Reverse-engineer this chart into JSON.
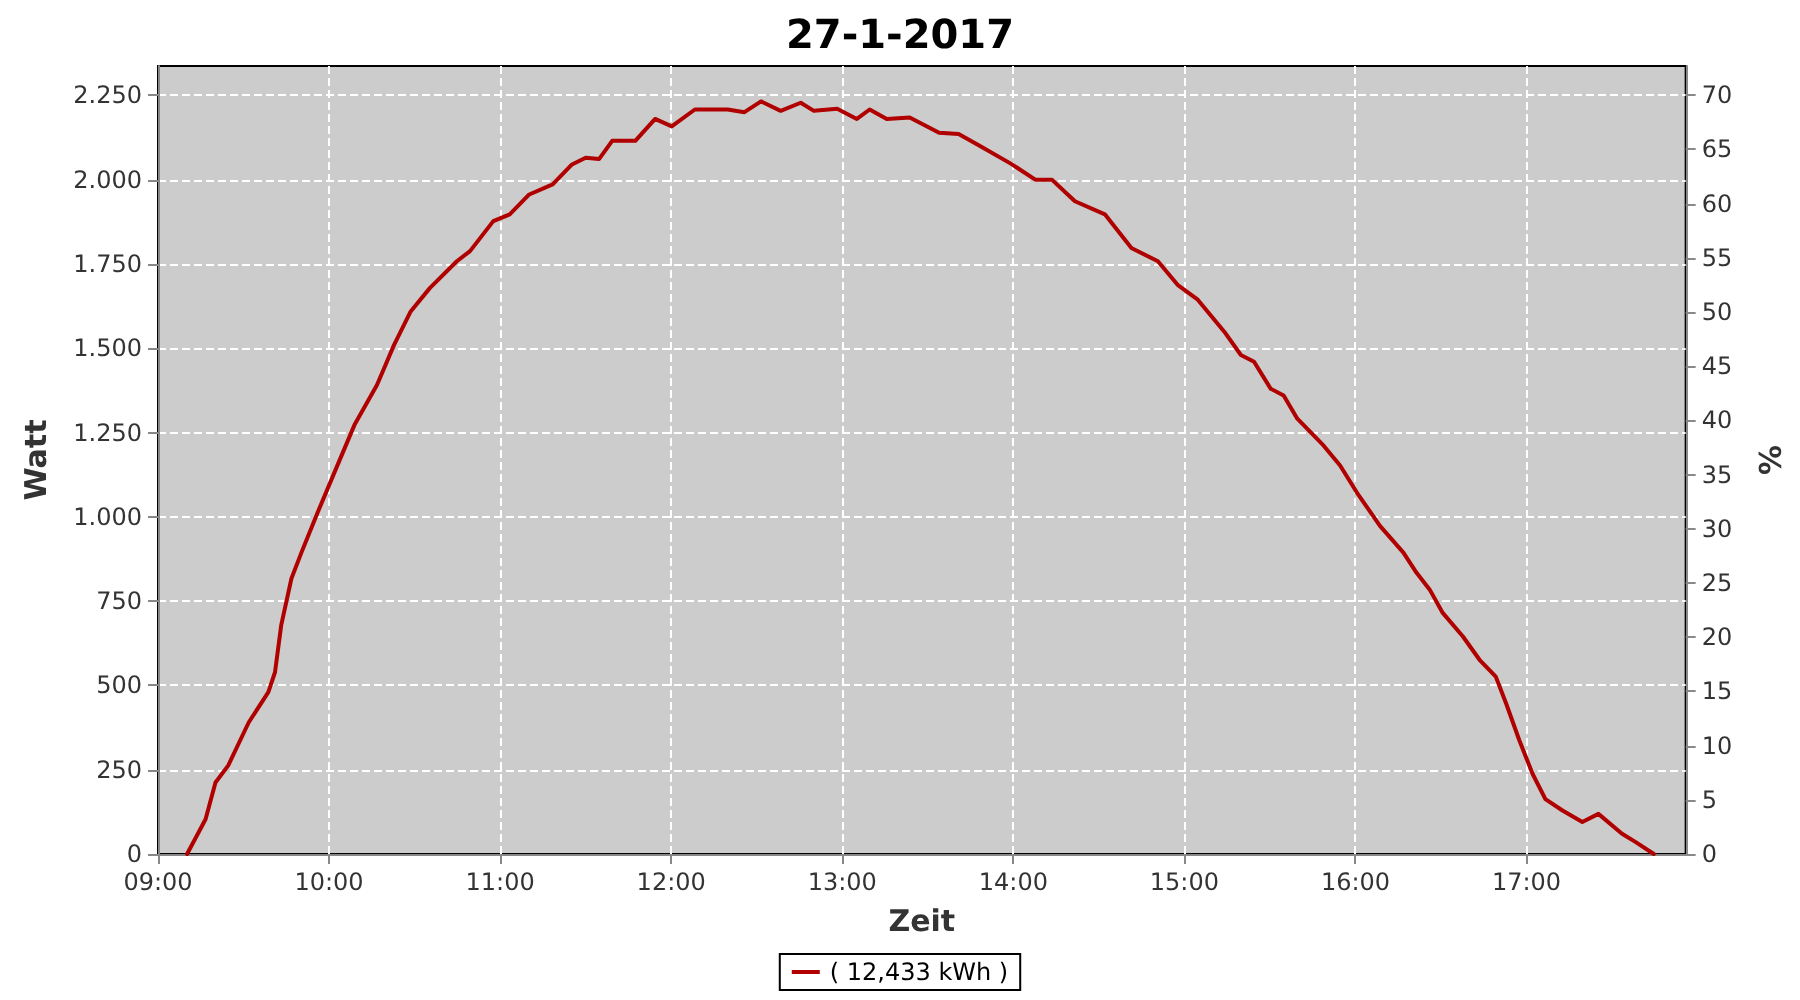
{
  "chart_data": {
    "type": "line",
    "title": "27-1-2017",
    "xlabel": "Zeit",
    "ylabel": "Watt",
    "y2label": "%",
    "xlim": [
      9,
      17.93
    ],
    "xticks": [
      {
        "value": 9,
        "label": "09:00"
      },
      {
        "value": 10,
        "label": "10:00"
      },
      {
        "value": 11,
        "label": "11:00"
      },
      {
        "value": 12,
        "label": "12:00"
      },
      {
        "value": 13,
        "label": "13:00"
      },
      {
        "value": 14,
        "label": "14:00"
      },
      {
        "value": 15,
        "label": "15:00"
      },
      {
        "value": 16,
        "label": "16:00"
      },
      {
        "value": 17,
        "label": "17:00"
      }
    ],
    "ylim": [
      0,
      2337
    ],
    "yticks": [
      0,
      250,
      500,
      750,
      {
        "value": 1000,
        "label": "1.000"
      },
      {
        "value": 1250,
        "label": "1.250"
      },
      {
        "value": 1500,
        "label": "1.500"
      },
      {
        "value": 1750,
        "label": "1.750"
      },
      {
        "value": 2000,
        "label": "2.000"
      },
      {
        "value": 2250,
        "label": "2.250"
      }
    ],
    "y2lim": [
      0,
      72.7
    ],
    "y2ticks": [
      0,
      5,
      10,
      15,
      20,
      25,
      30,
      35,
      40,
      45,
      50,
      55,
      60,
      65,
      70
    ],
    "grid": true,
    "legend": "bottom",
    "marker": "none",
    "line_style": "solid",
    "series": [
      {
        "name": "( 12,433 kWh )",
        "color": "#b00000",
        "x": [
          9.17,
          9.278,
          9.336,
          9.41,
          9.53,
          9.645,
          9.684,
          9.72,
          9.78,
          9.84,
          9.935,
          10.05,
          10.148,
          10.28,
          10.38,
          10.477,
          10.59,
          10.747,
          10.824,
          10.96,
          11.056,
          11.17,
          11.307,
          11.42,
          11.5,
          11.578,
          11.655,
          11.79,
          11.906,
          12.003,
          12.138,
          12.33,
          12.428,
          12.525,
          12.64,
          12.757,
          12.834,
          12.97,
          13.085,
          13.16,
          13.26,
          13.394,
          13.566,
          13.68,
          13.8,
          13.99,
          14.128,
          14.225,
          14.36,
          14.535,
          14.69,
          14.845,
          14.96,
          15.078,
          15.233,
          15.33,
          15.407,
          15.504,
          15.58,
          15.66,
          15.814,
          15.91,
          16.008,
          16.143,
          16.28,
          16.357,
          16.434,
          16.51,
          16.628,
          16.725,
          16.82,
          16.88,
          16.957,
          17.035,
          17.11,
          17.21,
          17.326,
          17.42,
          17.558,
          17.636,
          17.744
        ],
        "values": [
          0,
          103,
          212,
          262,
          390,
          480,
          539,
          678,
          817,
          896,
          1015,
          1154,
          1272,
          1391,
          1510,
          1609,
          1679,
          1758,
          1788,
          1877,
          1897,
          1956,
          1986,
          2045,
          2065,
          2061,
          2115,
          2115,
          2180,
          2158,
          2208,
          2208,
          2200,
          2232,
          2204,
          2228,
          2204,
          2210,
          2180,
          2208,
          2180,
          2184,
          2139,
          2135,
          2101,
          2046,
          2000,
          2000,
          1936,
          1897,
          1797,
          1758,
          1688,
          1644,
          1549,
          1480,
          1460,
          1380,
          1360,
          1291,
          1211,
          1152,
          1072,
          973,
          894,
          834,
          784,
          715,
          645,
          576,
          526,
          447,
          338,
          238,
          163,
          129,
          95,
          119,
          60,
          36,
          0
        ]
      }
    ]
  }
}
